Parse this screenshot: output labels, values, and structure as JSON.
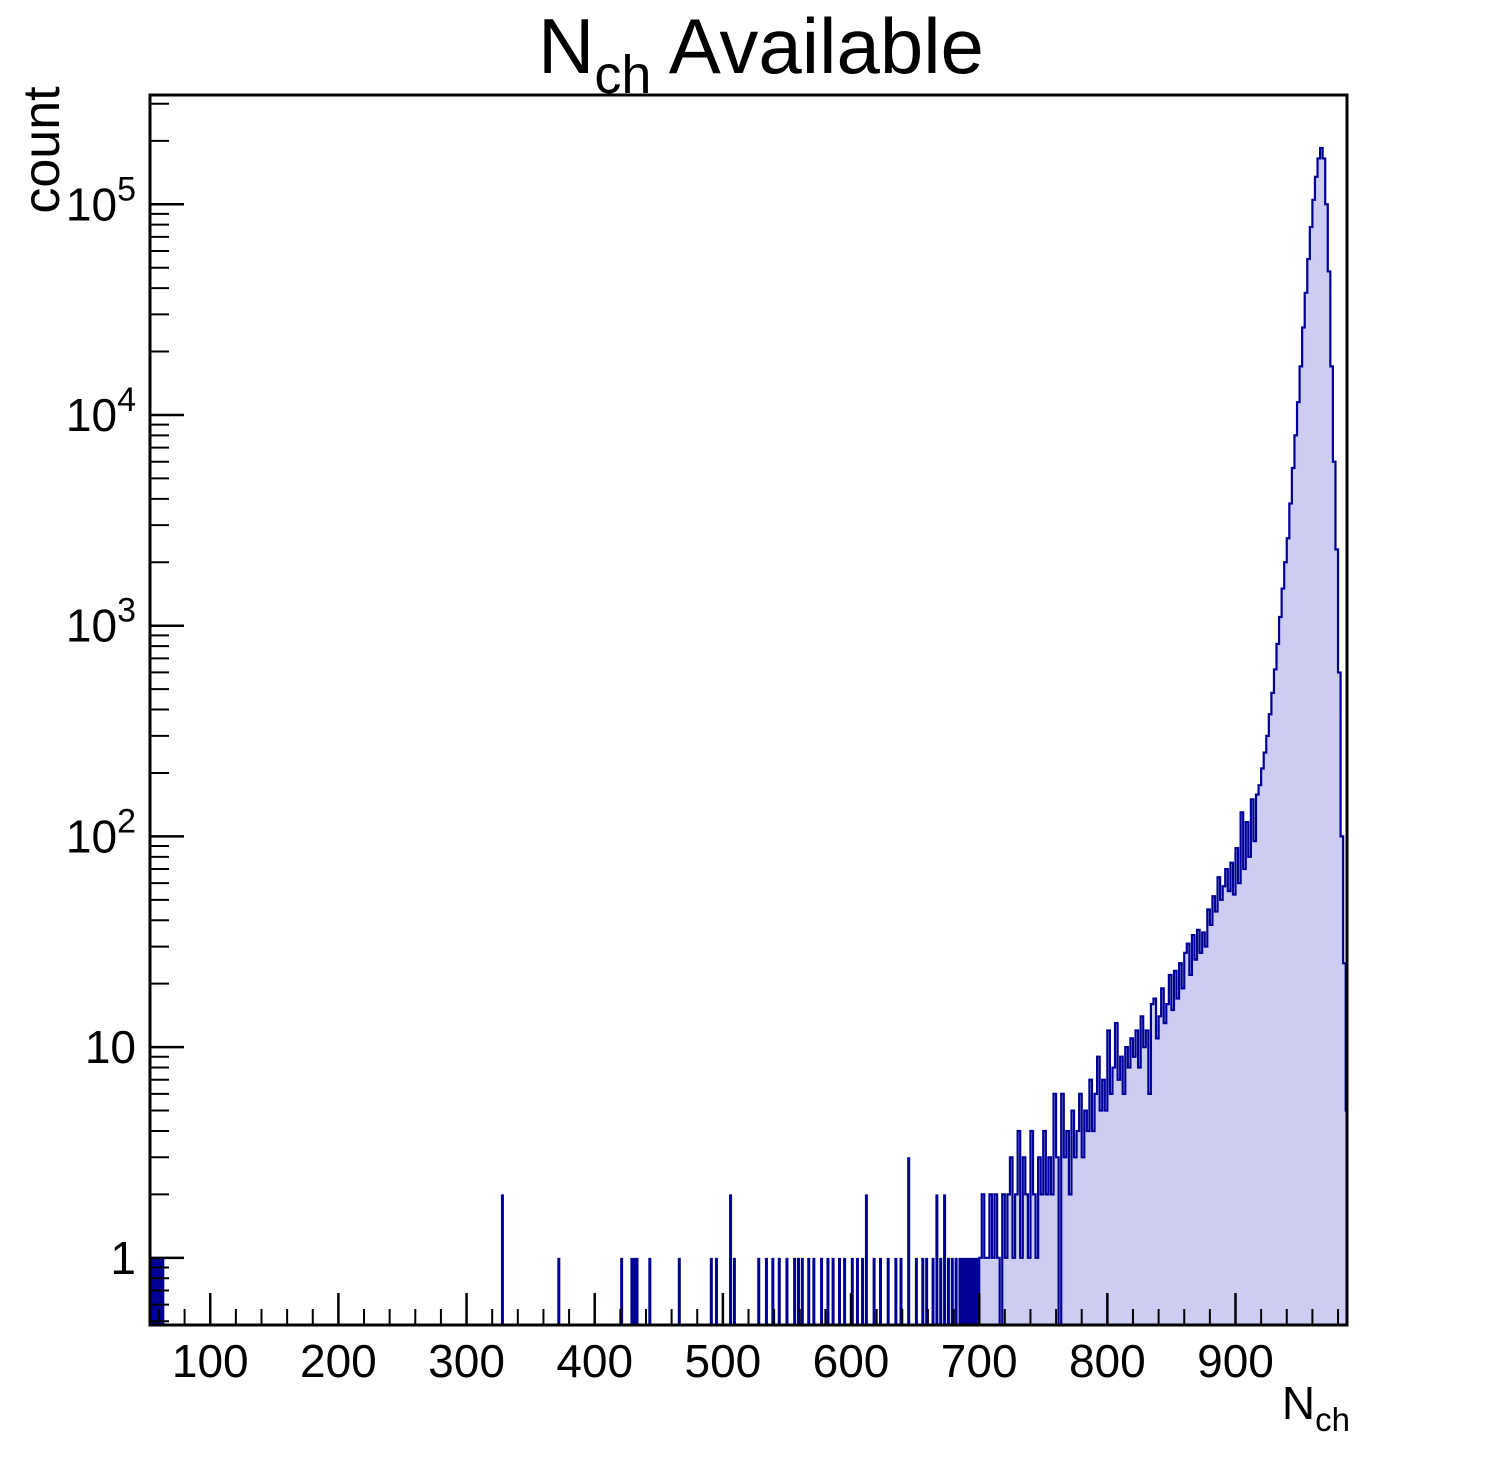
{
  "title": {
    "base": "N",
    "sub": "ch",
    "rest": " Available"
  },
  "axes": {
    "y_label": "count",
    "x_label_base": "N",
    "x_label_sub": "ch",
    "y_ticks": [
      {
        "v": 1,
        "base": "1",
        "exp": ""
      },
      {
        "v": 10,
        "base": "10",
        "exp": ""
      },
      {
        "v": 100,
        "base": "10",
        "exp": "2"
      },
      {
        "v": 1000,
        "base": "10",
        "exp": "3"
      },
      {
        "v": 10000,
        "base": "10",
        "exp": "4"
      },
      {
        "v": 100000,
        "base": "10",
        "exp": "5"
      }
    ],
    "x_ticks": [
      100,
      200,
      300,
      400,
      500,
      600,
      700,
      800,
      900
    ],
    "x_minor_step": 20
  },
  "colors": {
    "histogram_fill": "#cdcdf4",
    "histogram_line": "#000096",
    "axis": "#000000",
    "text": "#000000",
    "background": "#ffffff"
  },
  "chart_data": {
    "type": "bar",
    "subtype": "histogram",
    "title": "N_ch Available",
    "xlabel": "N_ch",
    "ylabel": "count",
    "y_scale": "log",
    "grid": false,
    "legend": false,
    "xlim": [
      53,
      987
    ],
    "ylim": [
      0.48,
      330000
    ],
    "bin_width": 2,
    "sparse_bins": [
      [
        54,
        1
      ],
      [
        56,
        1
      ],
      [
        58,
        1
      ],
      [
        60,
        1
      ],
      [
        62,
        1
      ],
      [
        327,
        2
      ],
      [
        371,
        1
      ],
      [
        420,
        1
      ],
      [
        428,
        1
      ],
      [
        430,
        1
      ],
      [
        432,
        1
      ],
      [
        442,
        1
      ],
      [
        465,
        1
      ],
      [
        490,
        1
      ],
      [
        494,
        1
      ],
      [
        505,
        2
      ],
      [
        508,
        1
      ],
      [
        527,
        1
      ],
      [
        533,
        1
      ],
      [
        538,
        1
      ],
      [
        543,
        1
      ],
      [
        549,
        1
      ],
      [
        555,
        1
      ],
      [
        558,
        1
      ],
      [
        561,
        1
      ],
      [
        566,
        1
      ],
      [
        570,
        1
      ],
      [
        576,
        1
      ],
      [
        581,
        1
      ],
      [
        585,
        1
      ],
      [
        590,
        1
      ],
      [
        594,
        1
      ],
      [
        600,
        1
      ],
      [
        604,
        1
      ],
      [
        608,
        1
      ],
      [
        611,
        2
      ],
      [
        617,
        1
      ],
      [
        622,
        1
      ],
      [
        628,
        1
      ],
      [
        634,
        1
      ],
      [
        638,
        1
      ],
      [
        644,
        3
      ],
      [
        650,
        1
      ],
      [
        655,
        1
      ],
      [
        658,
        1
      ],
      [
        663,
        1
      ],
      [
        666,
        2
      ],
      [
        669,
        1
      ],
      [
        672,
        2
      ],
      [
        675,
        1
      ],
      [
        678,
        1
      ],
      [
        681,
        1
      ],
      [
        684,
        1
      ],
      [
        686,
        1
      ],
      [
        688,
        1
      ],
      [
        690,
        1
      ],
      [
        692,
        1
      ],
      [
        694,
        1
      ],
      [
        696,
        1
      ],
      [
        698,
        1
      ]
    ],
    "dense_bins_start": 700,
    "dense_bins_counts": [
      1,
      2,
      1,
      1,
      2,
      1,
      2,
      1,
      0,
      2,
      1,
      2,
      3,
      1,
      2,
      4,
      1,
      3,
      2,
      1,
      4,
      2,
      1,
      3,
      2,
      4,
      2,
      3,
      2,
      6,
      3,
      0,
      6,
      3,
      4,
      2,
      5,
      3,
      4,
      6,
      3,
      5,
      4,
      7,
      4,
      6,
      9,
      5,
      7,
      5,
      12,
      6,
      8,
      13,
      7,
      9,
      6,
      10,
      8,
      11,
      9,
      12,
      8,
      14,
      10,
      12,
      6,
      16,
      17,
      11,
      14,
      19,
      13,
      16,
      22,
      15,
      23,
      17,
      25,
      19,
      28,
      31,
      22,
      34,
      26,
      36,
      28,
      35,
      30,
      45,
      38,
      52,
      44,
      64,
      50,
      58,
      70,
      55,
      75,
      53,
      88,
      60,
      130,
      70,
      117,
      80,
      150,
      95,
      158,
      175,
      210,
      250,
      300,
      380,
      480,
      620,
      820,
      1100,
      1500,
      2000,
      2600,
      3800,
      5600,
      8000,
      11500,
      17000,
      26000,
      38000,
      55000,
      78000,
      105000,
      135000,
      165000,
      185000,
      165000,
      100000,
      48000,
      17000,
      6000,
      2300,
      600,
      100,
      25,
      5
    ]
  }
}
